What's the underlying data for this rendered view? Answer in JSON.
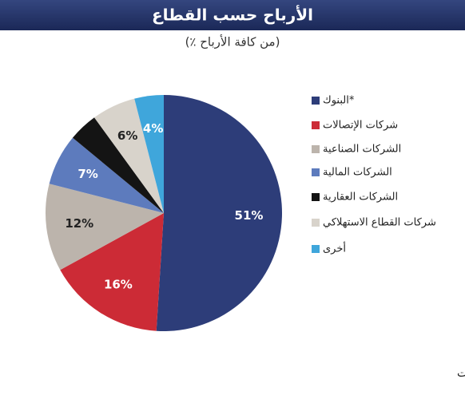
{
  "chart_data": {
    "type": "pie",
    "title": "الأرباح حسب القطاع",
    "subtitle": "(٪ من كافة الأرباح)",
    "categories": [
      "البنوك*",
      "شركات الإتصالات",
      "الشركات الصناعية",
      "الشركات المالية",
      "الشركات العقارية",
      "شركات القطاع الاستهلاكي",
      "أخرى"
    ],
    "values": [
      51,
      16,
      12,
      7,
      4,
      6,
      4
    ],
    "value_labels": [
      "51%",
      "16%",
      "12%",
      "7%",
      null,
      "6%",
      "4%"
    ],
    "colors": [
      "#2d3d79",
      "#cc2b36",
      "#bcb4ac",
      "#5d7bbd",
      "#141414",
      "#d8d3cb",
      "#3fa6db"
    ],
    "source": "المصدر: بورصة الكويت"
  }
}
